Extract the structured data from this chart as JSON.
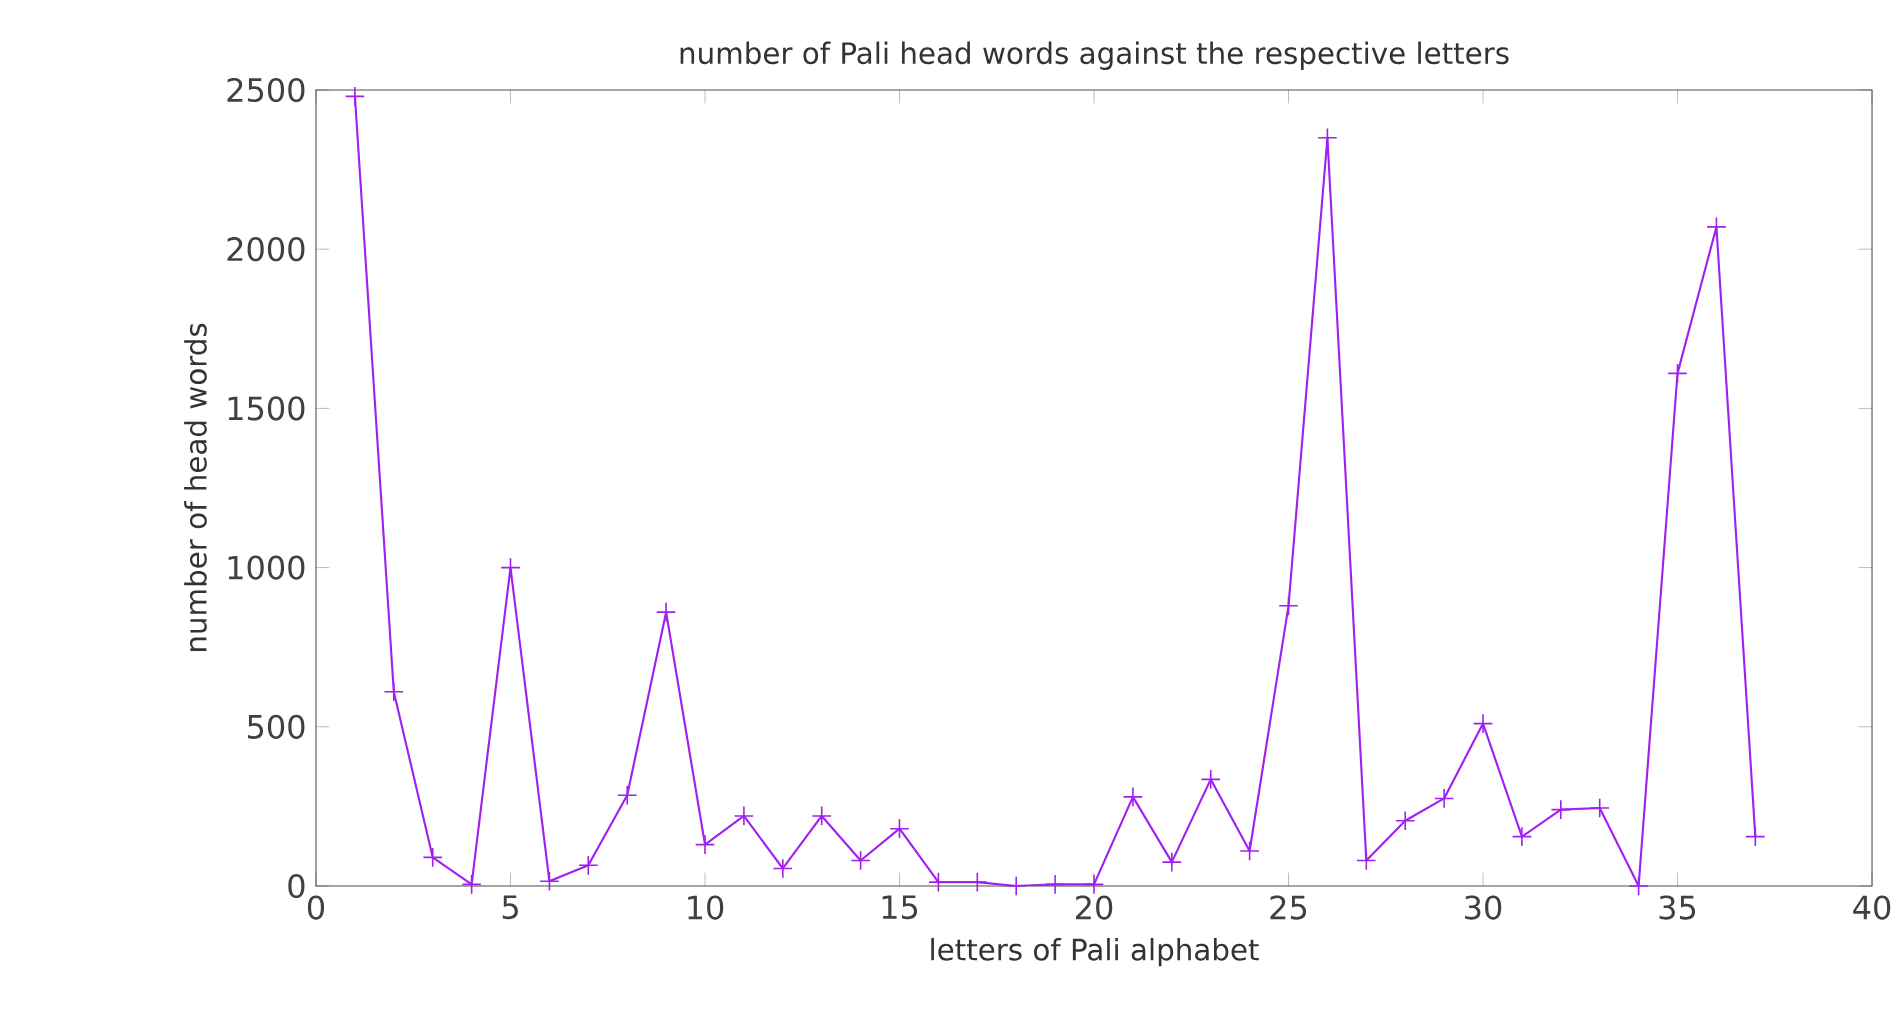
{
  "chart_data": {
    "type": "line",
    "title": "number of Pali head words against the respective letters",
    "xlabel": "letters of Pali alphabet",
    "ylabel": "number of head words",
    "x": [
      1,
      2,
      3,
      4,
      5,
      6,
      7,
      8,
      9,
      10,
      11,
      12,
      13,
      14,
      15,
      16,
      17,
      18,
      19,
      20,
      21,
      22,
      23,
      24,
      25,
      26,
      27,
      28,
      29,
      30,
      31,
      32,
      33,
      34,
      35,
      36,
      37
    ],
    "series": [
      {
        "color": "#a020f0",
        "values": [
          2480,
          610,
          90,
          5,
          1000,
          15,
          65,
          285,
          860,
          130,
          220,
          55,
          220,
          80,
          180,
          12,
          12,
          0,
          5,
          5,
          280,
          75,
          335,
          110,
          880,
          2350,
          80,
          205,
          275,
          510,
          155,
          240,
          245,
          0,
          1610,
          2070,
          155
        ]
      }
    ],
    "xlim": [
      0,
      40
    ],
    "ylim": [
      0,
      2500
    ],
    "xticks": [
      0,
      5,
      10,
      15,
      20,
      25,
      30,
      35,
      40
    ],
    "yticks": [
      0,
      500,
      1000,
      1500,
      2000,
      2500
    ],
    "marker": "cross",
    "line_style": "solid"
  }
}
